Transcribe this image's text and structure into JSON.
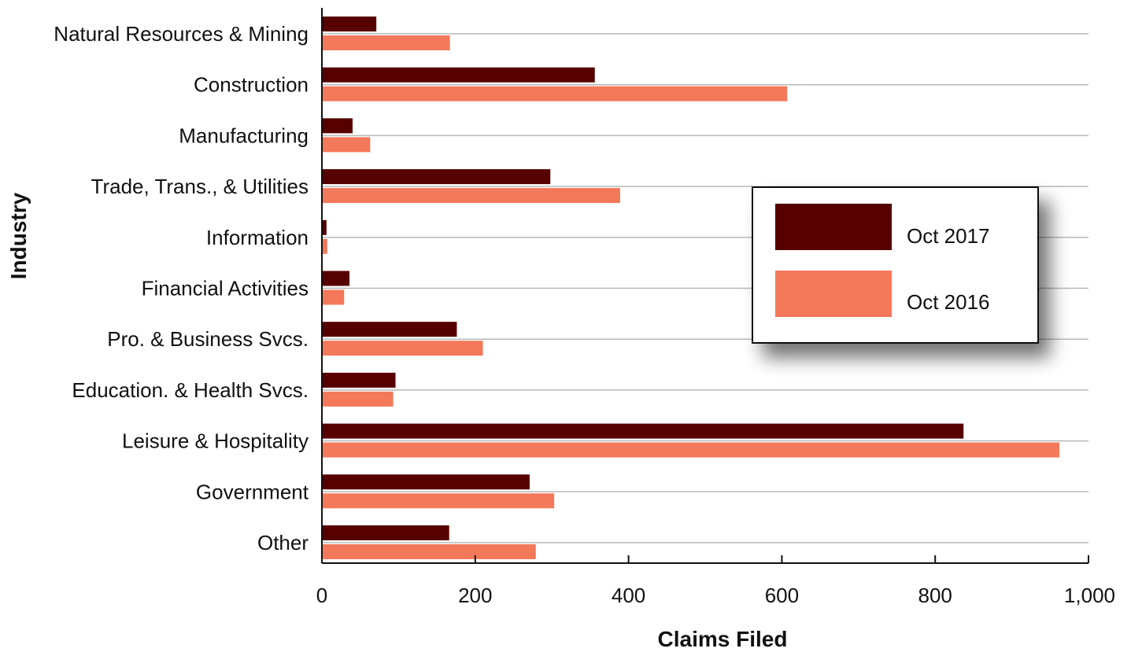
{
  "chart_data": {
    "type": "bar",
    "orientation": "horizontal",
    "categories": [
      "Natural Resources & Mining",
      "Construction",
      "Manufacturing",
      "Trade, Trans., & Utilities",
      "Information",
      "Financial Activities",
      "Pro. & Business Svcs.",
      "Education. & Health Svcs.",
      "Leisure & Hospitality",
      "Government",
      "Other"
    ],
    "series": [
      {
        "name": "Oct 2017",
        "color": "#560000",
        "values": [
          71,
          356,
          40,
          298,
          6,
          36,
          176,
          96,
          837,
          271,
          166
        ]
      },
      {
        "name": "Oct 2016",
        "color": "#f4785a",
        "values": [
          167,
          607,
          63,
          389,
          7,
          29,
          210,
          93,
          962,
          303,
          279
        ]
      }
    ],
    "xlabel": "Claims Filed",
    "ylabel": "Industry",
    "xlim": [
      0,
      1000
    ],
    "xticks": [
      0,
      200,
      400,
      600,
      800,
      1000
    ],
    "xtick_labels": [
      "0",
      "200",
      "400",
      "600",
      "800",
      "1,000"
    ],
    "grid": true,
    "legend_position": "right"
  }
}
